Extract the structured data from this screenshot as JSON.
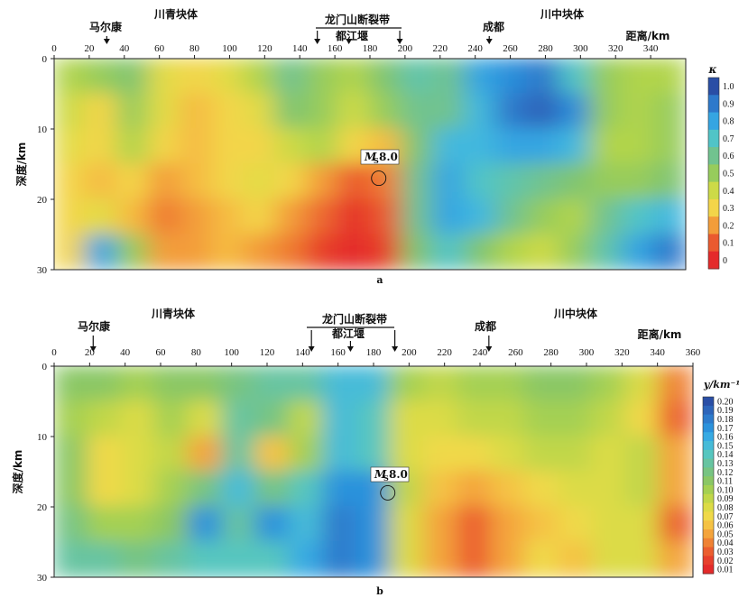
{
  "chart_data": [
    {
      "id": "a",
      "type": "heatmap",
      "panel_label": "a",
      "xlabel": "距离/km",
      "ylabel": "深度/km",
      "x_ticks": [
        "0",
        "20",
        "40",
        "60",
        "80",
        "100",
        "120",
        "140",
        "160",
        "180",
        "200",
        "220",
        "240",
        "260",
        "280",
        "300",
        "320",
        "340"
      ],
      "y_ticks": [
        "0",
        "10",
        "20",
        "30"
      ],
      "xlim": [
        0,
        360
      ],
      "ylim": [
        0,
        30
      ],
      "colorbar_title": "κ",
      "colorbar_ticks": [
        "1.0",
        "0.9",
        "0.8",
        "0.7",
        "0.6",
        "0.5",
        "0.4",
        "0.3",
        "0.2",
        "0.1",
        "0"
      ],
      "colorbar_colors": [
        "#2a4ea5",
        "#2f6fc4",
        "#2a90db",
        "#3cb3e6",
        "#53c6c4",
        "#6cc398",
        "#84c56a",
        "#aad24d",
        "#d6dc45",
        "#f3d94a",
        "#f6b13f",
        "#ef7f33",
        "#e84a2d",
        "#e42a2a"
      ],
      "annotations": {
        "block_left": "川青块体",
        "fault_zone": "龙门山断裂带",
        "block_right": "川中块体",
        "town_maerkang": "马尔康",
        "town_dujiangyan": "都江堰",
        "town_chengdu": "成都",
        "quake_prefix": "M",
        "quake_sub": "S",
        "quake_value": "8.0"
      },
      "markers": {
        "maerkang_x": 30,
        "fault_left_x": 150,
        "dujiangyan_x": 168,
        "fault_right_x": 197,
        "chengdu_x": 248,
        "quake_x": 185,
        "quake_depth": 17
      },
      "grid": [
        [
          0.45,
          0.5,
          0.55,
          0.35,
          0.3,
          0.35,
          0.45,
          0.6,
          0.5,
          0.45,
          0.55,
          0.65,
          0.6,
          0.8,
          0.85,
          0.9,
          0.7,
          0.5,
          0.45,
          0.45
        ],
        [
          0.4,
          0.3,
          0.5,
          0.35,
          0.25,
          0.3,
          0.35,
          0.55,
          0.5,
          0.4,
          0.5,
          0.6,
          0.6,
          0.75,
          0.9,
          0.95,
          0.85,
          0.5,
          0.45,
          0.5
        ],
        [
          0.35,
          0.3,
          0.45,
          0.3,
          0.25,
          0.3,
          0.3,
          0.4,
          0.45,
          0.3,
          0.25,
          0.55,
          0.75,
          0.75,
          0.8,
          0.8,
          0.75,
          0.45,
          0.45,
          0.5
        ],
        [
          0.3,
          0.25,
          0.3,
          0.2,
          0.25,
          0.3,
          0.35,
          0.3,
          0.2,
          0.1,
          0.15,
          0.6,
          0.8,
          0.7,
          0.65,
          0.6,
          0.55,
          0.5,
          0.5,
          0.55
        ],
        [
          0.3,
          0.35,
          0.25,
          0.15,
          0.2,
          0.25,
          0.3,
          0.2,
          0.12,
          0.02,
          0.1,
          0.6,
          0.8,
          0.75,
          0.6,
          0.5,
          0.45,
          0.6,
          0.7,
          0.75
        ],
        [
          0.3,
          0.8,
          0.5,
          0.2,
          0.2,
          0.25,
          0.2,
          0.15,
          0.05,
          0,
          0.05,
          0.55,
          0.7,
          0.55,
          0.45,
          0.4,
          0.5,
          0.65,
          0.8,
          0.9
        ]
      ]
    },
    {
      "id": "b",
      "type": "heatmap",
      "panel_label": "b",
      "xlabel": "距离/km",
      "ylabel": "深度/km",
      "x_ticks": [
        "0",
        "20",
        "40",
        "60",
        "80",
        "100",
        "120",
        "140",
        "160",
        "180",
        "200",
        "220",
        "240",
        "260",
        "280",
        "300",
        "320",
        "340",
        "360"
      ],
      "y_ticks": [
        "0",
        "10",
        "20",
        "30"
      ],
      "xlim": [
        0,
        360
      ],
      "ylim": [
        0,
        30
      ],
      "colorbar_title": "y/km⁻¹",
      "colorbar_ticks": [
        "0.20",
        "0.19",
        "0.18",
        "0.17",
        "0.16",
        "0.15",
        "0.14",
        "0.13",
        "0.12",
        "0.11",
        "0.10",
        "0.09",
        "0.08",
        "0.07",
        "0.06",
        "0.05",
        "0.04",
        "0.03",
        "0.02",
        "0.01"
      ],
      "colorbar_colors": [
        "#2a4ea5",
        "#2f6fc4",
        "#2a90db",
        "#3cb3e6",
        "#53c6c4",
        "#6cc398",
        "#84c56a",
        "#aad24d",
        "#d6dc45",
        "#f3d94a",
        "#f6b13f",
        "#ef7f33",
        "#e84a2d",
        "#e42a2a"
      ],
      "annotations": {
        "block_left": "川青块体",
        "fault_zone": "龙门山断裂带",
        "block_right": "川中块体",
        "town_maerkang": "马尔康",
        "town_dujiangyan": "都江堰",
        "town_chengdu": "成都",
        "quake_prefix": "M",
        "quake_sub": "S",
        "quake_value": "8.0"
      },
      "markers": {
        "maerkang_x": 22,
        "fault_left_x": 145,
        "dujiangyan_x": 167,
        "fault_right_x": 192,
        "chengdu_x": 245,
        "quake_x": 188,
        "quake_depth": 18
      },
      "grid": [
        [
          0.11,
          0.11,
          0.1,
          0.11,
          0.11,
          0.12,
          0.13,
          0.13,
          0.15,
          0.15,
          0.1,
          0.09,
          0.1,
          0.1,
          0.11,
          0.11,
          0.1,
          0.08,
          0.04
        ],
        [
          0.1,
          0.09,
          0.08,
          0.1,
          0.08,
          0.13,
          0.12,
          0.09,
          0.15,
          0.14,
          0.08,
          0.08,
          0.09,
          0.09,
          0.1,
          0.1,
          0.09,
          0.07,
          0.03
        ],
        [
          0.11,
          0.07,
          0.08,
          0.09,
          0.05,
          0.13,
          0.06,
          0.1,
          0.15,
          0.14,
          0.08,
          0.07,
          0.07,
          0.08,
          0.09,
          0.09,
          0.08,
          0.09,
          0.05
        ],
        [
          0.11,
          0.07,
          0.08,
          0.1,
          0.12,
          0.15,
          0.12,
          0.14,
          0.17,
          0.17,
          0.09,
          0.06,
          0.05,
          0.06,
          0.07,
          0.08,
          0.08,
          0.09,
          0.05
        ],
        [
          0.12,
          0.1,
          0.1,
          0.11,
          0.17,
          0.13,
          0.17,
          0.15,
          0.18,
          0.17,
          0.08,
          0.05,
          0.03,
          0.05,
          0.06,
          0.07,
          0.08,
          0.08,
          0.03
        ],
        [
          0.13,
          0.13,
          0.12,
          0.13,
          0.14,
          0.14,
          0.14,
          0.16,
          0.18,
          0.17,
          0.08,
          0.05,
          0.03,
          0.05,
          0.07,
          0.06,
          0.08,
          0.08,
          0.05
        ]
      ]
    }
  ]
}
